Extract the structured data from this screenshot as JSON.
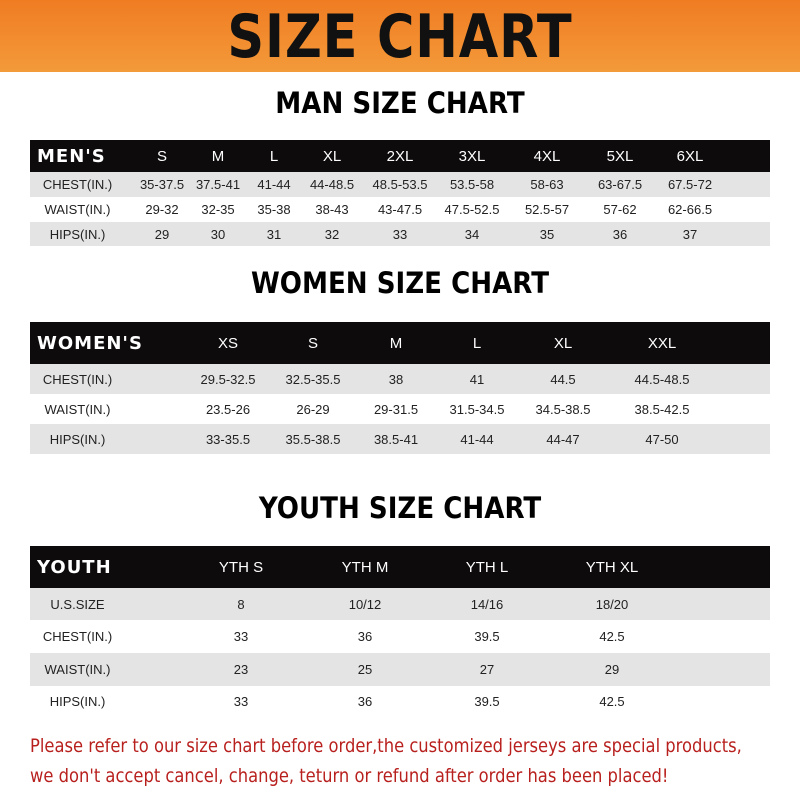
{
  "banner": {
    "title": "SIZE CHART"
  },
  "men": {
    "title": "MAN SIZE CHART",
    "header": [
      "MEN'S",
      "S",
      "M",
      "L",
      "XL",
      "2XL",
      "3XL",
      "4XL",
      "5XL",
      "6XL"
    ],
    "rows": [
      [
        "CHEST(IN.)",
        "35-37.5",
        "37.5-41",
        "41-44",
        "44-48.5",
        "48.5-53.5",
        "53.5-58",
        "58-63",
        "63-67.5",
        "67.5-72"
      ],
      [
        "WAIST(IN.)",
        "29-32",
        "32-35",
        "35-38",
        "38-43",
        "43-47.5",
        "47.5-52.5",
        "52.5-57",
        "57-62",
        "62-66.5"
      ],
      [
        "HIPS(IN.)",
        "29",
        "30",
        "31",
        "32",
        "33",
        "34",
        "35",
        "36",
        "37"
      ]
    ]
  },
  "women": {
    "title": "WOMEN SIZE CHART",
    "header": [
      "WOMEN'S",
      "XS",
      "S",
      "M",
      "L",
      "XL",
      "XXL"
    ],
    "rows": [
      [
        "CHEST(IN.)",
        "29.5-32.5",
        "32.5-35.5",
        "38",
        "41",
        "44.5",
        "44.5-48.5"
      ],
      [
        "WAIST(IN.)",
        "23.5-26",
        "26-29",
        "29-31.5",
        "31.5-34.5",
        "34.5-38.5",
        "38.5-42.5"
      ],
      [
        "HIPS(IN.)",
        "33-35.5",
        "35.5-38.5",
        "38.5-41",
        "41-44",
        "44-47",
        "47-50"
      ]
    ]
  },
  "youth": {
    "title": "YOUTH SIZE CHART",
    "header": [
      "YOUTH",
      "YTH S",
      "YTH M",
      "YTH L",
      "YTH XL"
    ],
    "rows": [
      [
        "U.S.SIZE",
        "8",
        "10/12",
        "14/16",
        "18/20"
      ],
      [
        "CHEST(IN.)",
        "33",
        "36",
        "39.5",
        "42.5"
      ],
      [
        "WAIST(IN.)",
        "23",
        "25",
        "27",
        "29"
      ],
      [
        "HIPS(IN.)",
        "33",
        "36",
        "39.5",
        "42.5"
      ]
    ]
  },
  "notice": {
    "line1": "Please refer to our size chart before order,the customized jerseys are special products,",
    "line2": "we don't accept cancel, change, teturn or refund after order has been placed!"
  },
  "colors": {
    "banner": "#f07c22",
    "header": "#0d0b0b",
    "stripe": "#e4e4e4",
    "notice": "#b8201e"
  }
}
